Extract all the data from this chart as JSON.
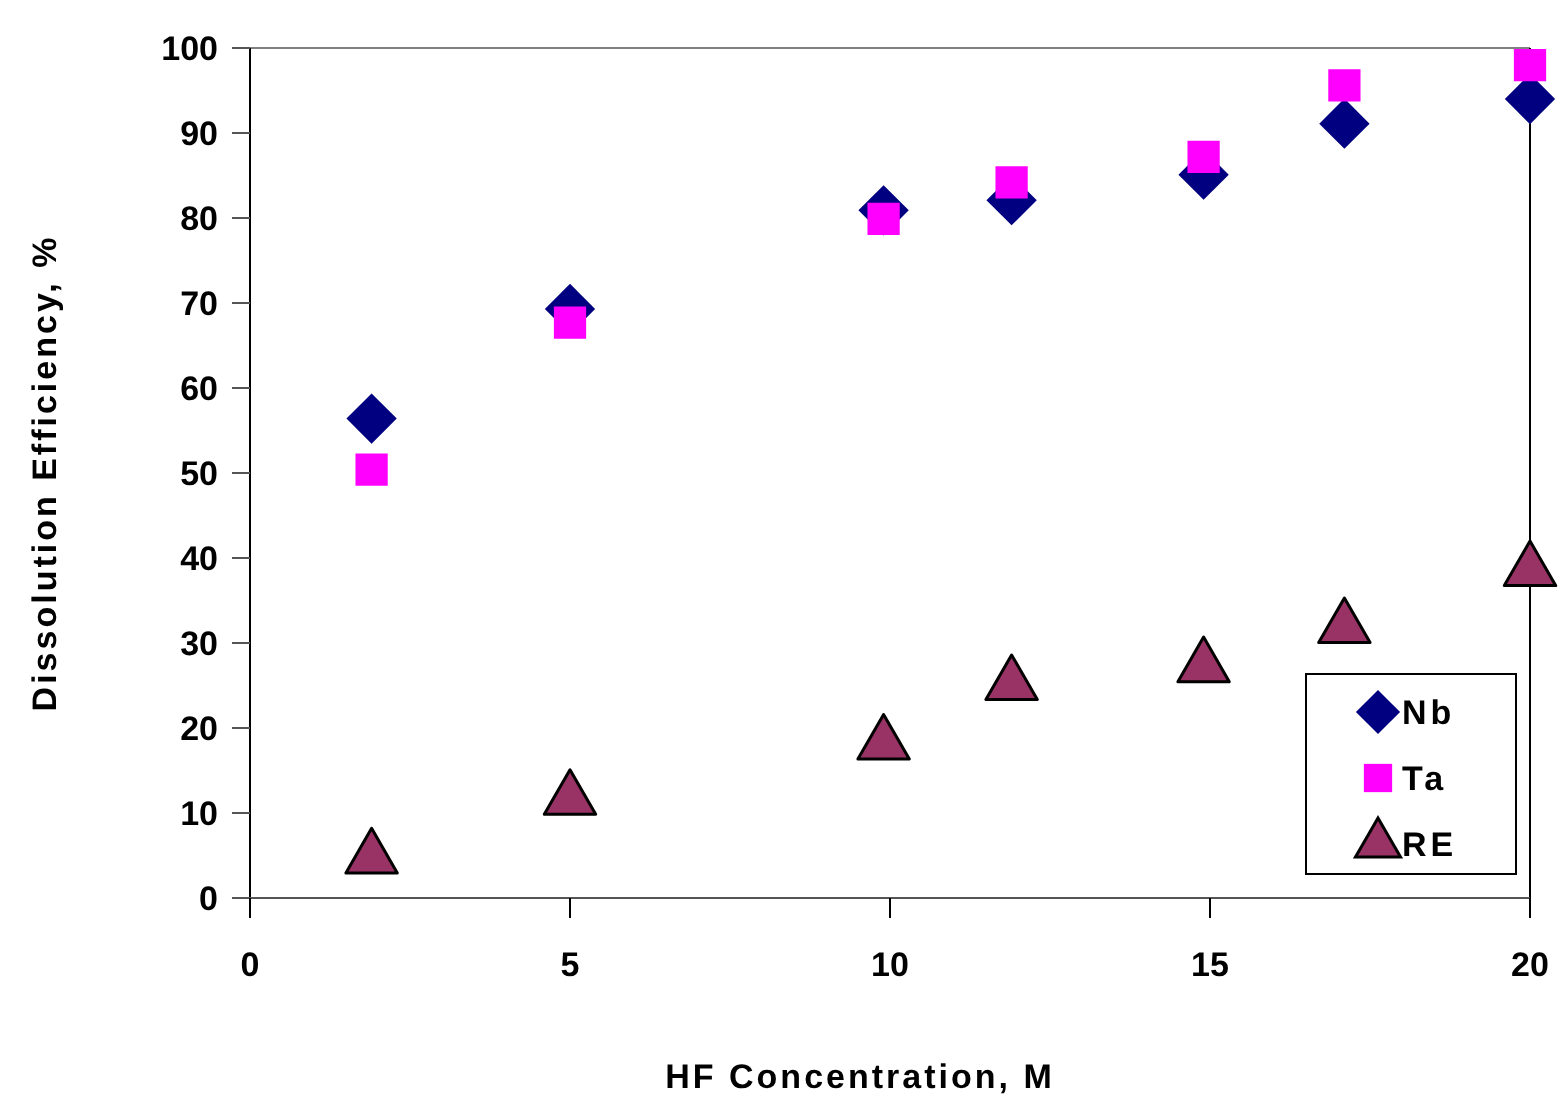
{
  "chart_data": {
    "type": "scatter",
    "xlabel": "HF Concentration, M",
    "ylabel": "Dissolution Efficiency, %",
    "xlim": [
      0,
      20
    ],
    "xticks": [
      0,
      5,
      10,
      15,
      20
    ],
    "ylim": [
      0,
      100
    ],
    "yticks": [
      0,
      10,
      20,
      30,
      40,
      50,
      60,
      70,
      80,
      90,
      100
    ],
    "grid": false,
    "legend": "bottom right",
    "x": [
      1.9,
      5,
      9.9,
      11.9,
      14.9,
      17.1,
      20
    ],
    "series": [
      {
        "name": "Nb",
        "color": "#000080",
        "marker": "diamond",
        "values": [
          56.4,
          69.3,
          80.9,
          82.1,
          85.1,
          91.1,
          94.0
        ]
      },
      {
        "name": "Ta",
        "color": "#ff00ff",
        "marker": "square",
        "values": [
          50.4,
          67.7,
          79.9,
          84.2,
          87.2,
          95.6,
          98.0
        ]
      },
      {
        "name": "RE",
        "color": "#993366",
        "marker": "triangle",
        "values": [
          4.7,
          11.6,
          18.1,
          25.1,
          27.2,
          31.8,
          38.5
        ]
      }
    ]
  }
}
